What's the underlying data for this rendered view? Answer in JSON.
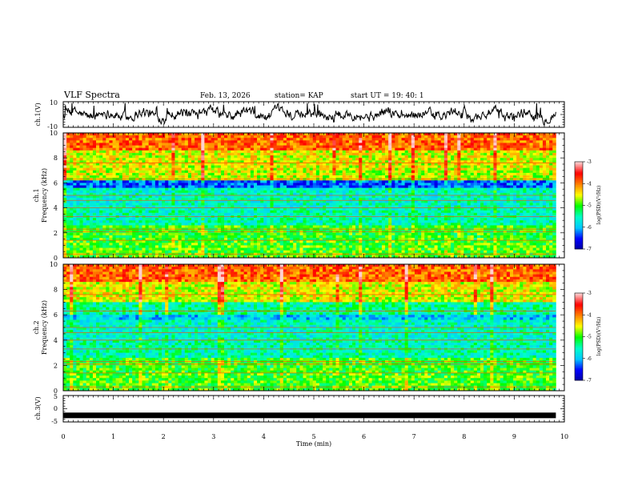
{
  "header": {
    "title": "VLF Spectra",
    "date": "Feb. 13, 2026",
    "station": "station= KAP",
    "start": "start  UT =   19: 40: 1"
  },
  "chart_data": [
    {
      "type": "line",
      "panel": "ch1-waveform",
      "ylabel": "ch.1(V)",
      "ylim": [
        -10,
        10
      ],
      "yticks": [
        "10",
        "-10"
      ],
      "xlim": [
        0,
        10
      ],
      "data_extent_min": 9.83,
      "line_color": "#000000"
    },
    {
      "type": "heatmap",
      "panel": "ch1-spectrogram",
      "ylabel_top": "ch.1",
      "ylabel": "Frequency (kHz)",
      "ylim": [
        0,
        10
      ],
      "yticks": [
        "0",
        "2",
        "4",
        "6",
        "8",
        "10"
      ],
      "xlim": [
        0,
        10
      ],
      "colorbar": {
        "label": "log(PSD)(V²/Hz)",
        "range": [
          -7,
          -3
        ],
        "ticks": [
          "-3",
          "-4",
          "-5",
          "-6",
          "-7"
        ]
      }
    },
    {
      "type": "heatmap",
      "panel": "ch2-spectrogram",
      "ylabel_top": "ch.2",
      "ylabel": "Frequency (kHz)",
      "ylim": [
        0,
        10
      ],
      "yticks": [
        "0",
        "2",
        "4",
        "6",
        "8",
        "10"
      ],
      "xlim": [
        0,
        10
      ],
      "colorbar": {
        "label": "log(PSD)(V²/Hz)",
        "range": [
          -7,
          -3
        ],
        "ticks": [
          "-3",
          "-4",
          "-5",
          "-6",
          "-7"
        ]
      }
    },
    {
      "type": "line",
      "panel": "ch3-waveform",
      "ylabel": "ch.3(V)",
      "ylim": [
        -5,
        5
      ],
      "yticks": [
        "5",
        "0",
        "-5"
      ],
      "xlim": [
        0,
        10
      ],
      "constant_value": -2.5,
      "line_color": "#000000"
    }
  ],
  "xaxis": {
    "label": "Time (min)",
    "ticks": [
      "0",
      "1",
      "2",
      "3",
      "4",
      "5",
      "6",
      "7",
      "8",
      "9",
      "10"
    ]
  },
  "colors": {
    "colormap": [
      "#0000a0",
      "#0000ff",
      "#00c8ff",
      "#00ffc8",
      "#00ff00",
      "#ffff00",
      "#ff8000",
      "#ff0000",
      "#ffd0d0"
    ]
  }
}
